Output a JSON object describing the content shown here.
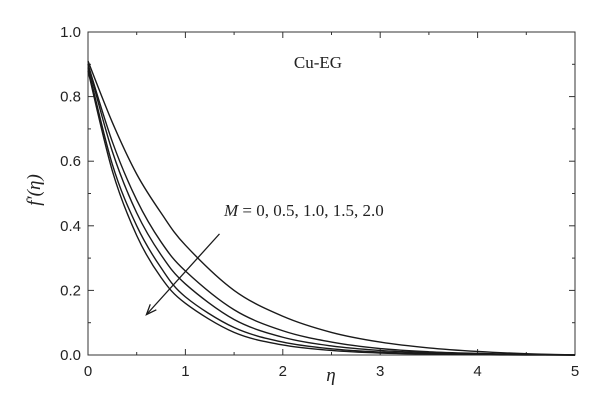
{
  "chart_data": {
    "type": "line",
    "xlabel": "η",
    "ylabel": "f′(η)",
    "xlim": [
      0,
      5
    ],
    "ylim": [
      0,
      1.0
    ],
    "xticks": [
      "0",
      "1",
      "2",
      "3",
      "4",
      "5"
    ],
    "yticks": [
      "0.0",
      "0.2",
      "0.4",
      "0.6",
      "0.8",
      "1.0"
    ],
    "grid": false,
    "annotations": {
      "fluid_label": "Cu-EG",
      "param_symbol": "M",
      "param_values": " = 0, 0.5, 1.0, 1.5, 2.0"
    },
    "series": [
      {
        "x": [
          0,
          0.25,
          0.5,
          0.75,
          1.0,
          1.5,
          2.0,
          2.5,
          3.0,
          3.5,
          4.0,
          4.5,
          5.0
        ],
        "values": [
          0.91,
          0.72,
          0.56,
          0.44,
          0.34,
          0.2,
          0.12,
          0.07,
          0.04,
          0.022,
          0.011,
          0.004,
          0.0
        ]
      },
      {
        "x": [
          0,
          0.25,
          0.5,
          0.75,
          1.0,
          1.5,
          2.0,
          2.5,
          3.0,
          3.5,
          4.0,
          4.5,
          5.0
        ],
        "values": [
          0.9,
          0.66,
          0.48,
          0.35,
          0.26,
          0.14,
          0.075,
          0.04,
          0.02,
          0.01,
          0.005,
          0.002,
          0.0
        ]
      },
      {
        "x": [
          0,
          0.25,
          0.5,
          0.75,
          1.0,
          1.5,
          2.0,
          2.5,
          3.0,
          3.5,
          4.0,
          4.5,
          5.0
        ],
        "values": [
          0.9,
          0.63,
          0.44,
          0.31,
          0.22,
          0.11,
          0.055,
          0.028,
          0.014,
          0.007,
          0.003,
          0.001,
          0.0
        ]
      },
      {
        "x": [
          0,
          0.25,
          0.5,
          0.75,
          1.0,
          1.5,
          2.0,
          2.5,
          3.0,
          3.5,
          4.0,
          4.5,
          5.0
        ],
        "values": [
          0.89,
          0.59,
          0.4,
          0.27,
          0.18,
          0.085,
          0.04,
          0.019,
          0.009,
          0.004,
          0.002,
          0.001,
          0.0
        ]
      },
      {
        "x": [
          0,
          0.25,
          0.5,
          0.75,
          1.0,
          1.5,
          2.0,
          2.5,
          3.0,
          3.5,
          4.0,
          4.5,
          5.0
        ],
        "values": [
          0.88,
          0.57,
          0.37,
          0.24,
          0.16,
          0.07,
          0.031,
          0.014,
          0.006,
          0.003,
          0.001,
          0.0,
          0.0
        ]
      }
    ],
    "arrow": {
      "from": [
        1.35,
        0.375
      ],
      "to": [
        0.6,
        0.125
      ],
      "direction": "increasing M"
    },
    "line_color": "#1a1a1a"
  }
}
